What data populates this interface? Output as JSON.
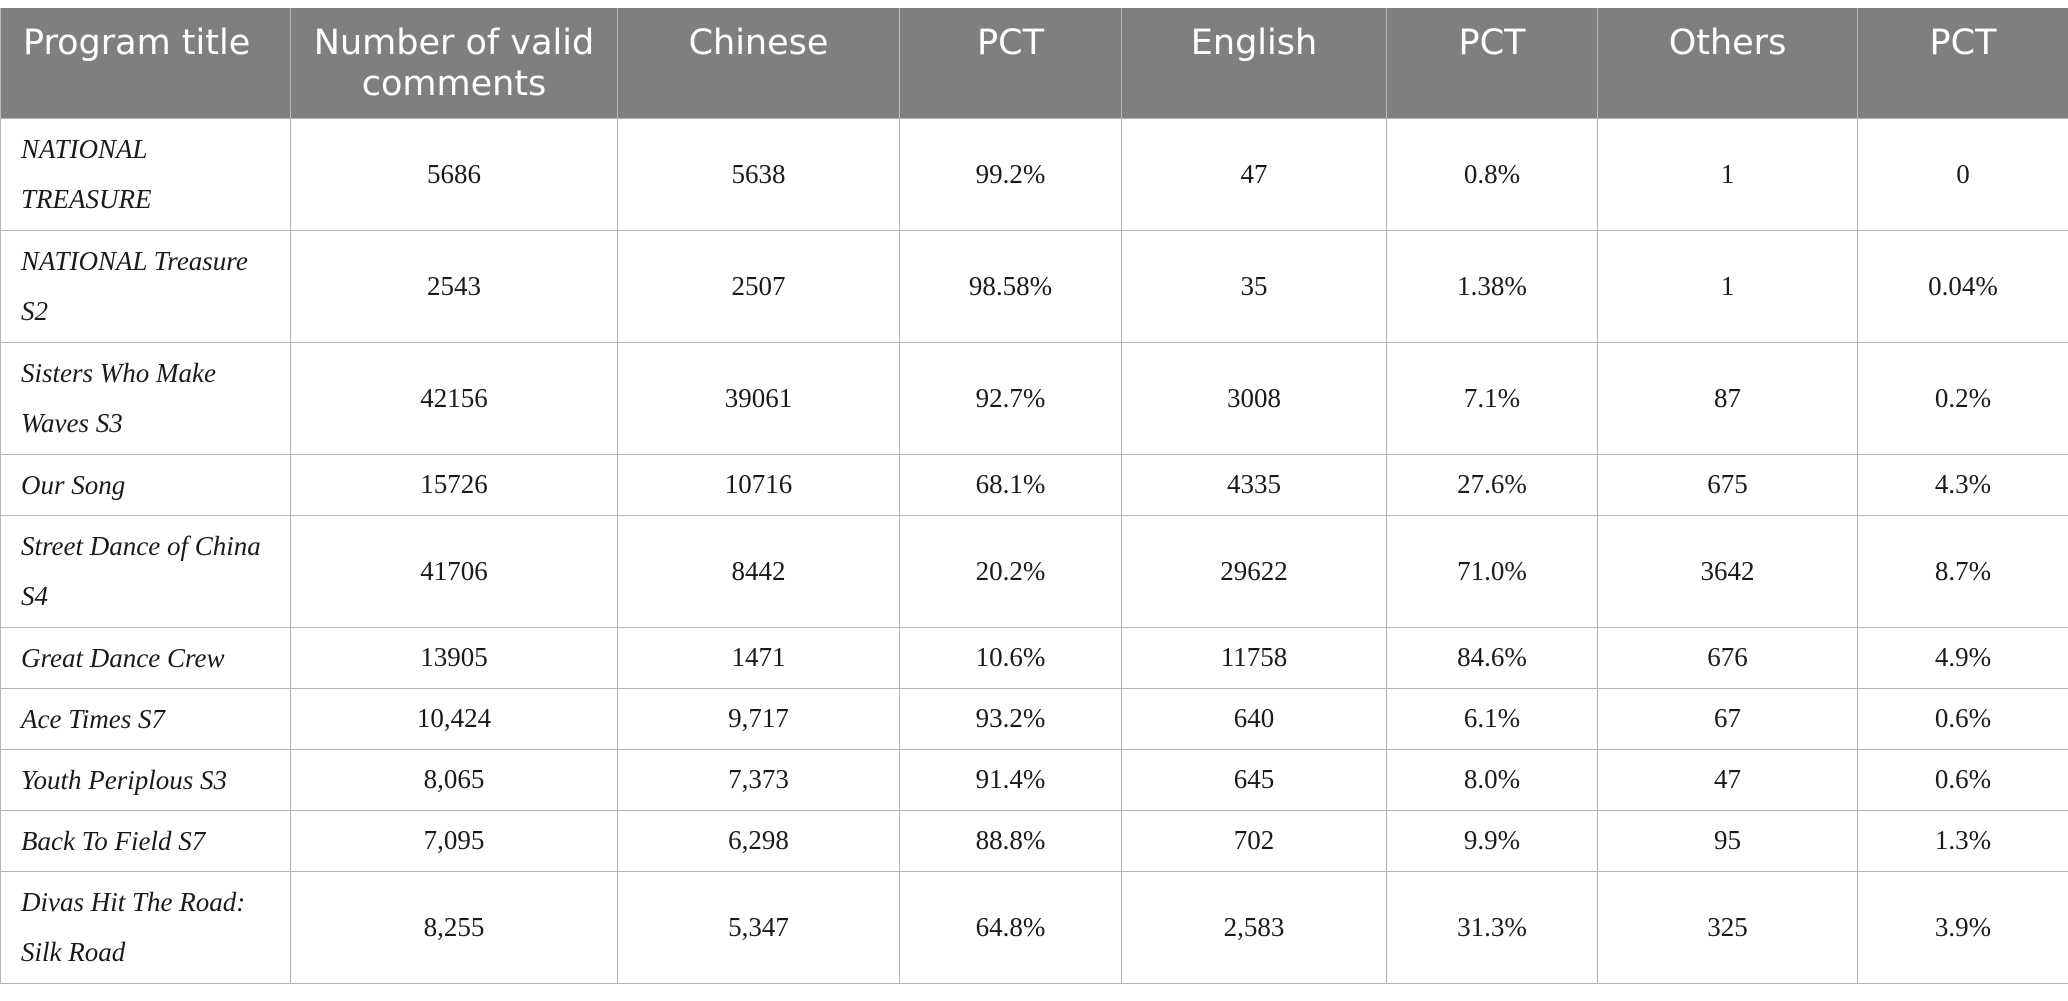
{
  "table": {
    "headers": [
      "Program title",
      "Number of valid comments",
      "Chinese",
      "PCT",
      "English",
      "PCT",
      "Others",
      "PCT"
    ],
    "rows": [
      [
        "NATIONAL TREASURE",
        "5686",
        "5638",
        "99.2%",
        "47",
        "0.8%",
        "1",
        "0"
      ],
      [
        "NATIONAL Treasure S2",
        "2543",
        "2507",
        "98.58%",
        "35",
        "1.38%",
        "1",
        "0.04%"
      ],
      [
        "Sisters Who Make Waves S3",
        "42156",
        "39061",
        "92.7%",
        "3008",
        "7.1%",
        "87",
        "0.2%"
      ],
      [
        "Our Song",
        "15726",
        "10716",
        "68.1%",
        "4335",
        "27.6%",
        "675",
        "4.3%"
      ],
      [
        "Street Dance of China S4",
        "41706",
        "8442",
        "20.2%",
        "29622",
        "71.0%",
        "3642",
        "8.7%"
      ],
      [
        "Great Dance Crew",
        "13905",
        "1471",
        "10.6%",
        "11758",
        "84.6%",
        "676",
        "4.9%"
      ],
      [
        "Ace Times S7",
        "10,424",
        "9,717",
        "93.2%",
        "640",
        "6.1%",
        "67",
        "0.6%"
      ],
      [
        "Youth Periplous S3",
        "8,065",
        "7,373",
        "91.4%",
        "645",
        "8.0%",
        "47",
        "0.6%"
      ],
      [
        "Back To Field S7",
        "7,095",
        "6,298",
        "88.8%",
        "702",
        "9.9%",
        "95",
        "1.3%"
      ],
      [
        "Divas Hit The Road: Silk Road",
        "8,255",
        "5,347",
        "64.8%",
        "2,583",
        "31.3%",
        "325",
        "3.9%"
      ]
    ]
  },
  "colors": {
    "header_background": "#7f807e",
    "header_text": "#ffffff",
    "grid_lines": "#b4b4b4"
  }
}
